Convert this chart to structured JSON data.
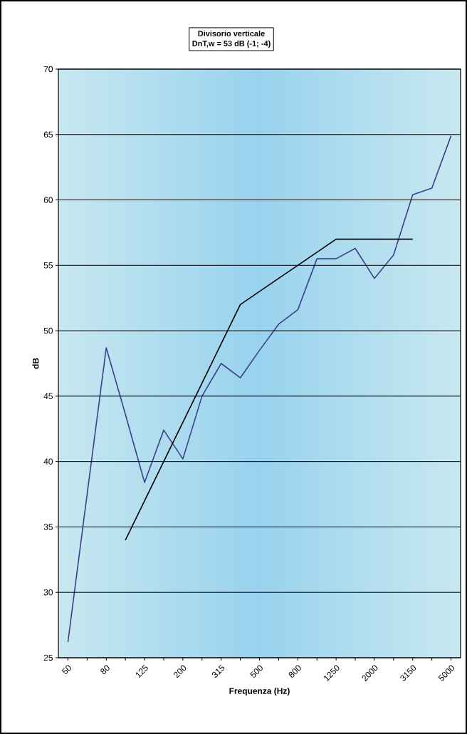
{
  "chart_data": {
    "type": "line",
    "title": "Divisorio verticale",
    "subtitle": "DnT,w = 53 dB (-1; -4)",
    "xlabel": "Frequenza (Hz)",
    "ylabel": "dB",
    "categories": [
      "50",
      null,
      "80",
      null,
      "125",
      null,
      "200",
      null,
      "315",
      null,
      "500",
      null,
      "800",
      null,
      "1250",
      null,
      "2000",
      null,
      "3150",
      null,
      "5000"
    ],
    "series": [
      {
        "color": "#3b3f8c",
        "values": [
          26.2,
          37.5,
          48.7,
          43.6,
          38.4,
          42.4,
          40.2,
          45.0,
          47.5,
          46.4,
          48.5,
          50.5,
          51.6,
          55.5,
          55.5,
          56.3,
          54.0,
          55.8,
          60.4,
          60.9,
          64.9
        ]
      },
      {
        "color": "#000000",
        "values": [
          null,
          null,
          null,
          34,
          37,
          40,
          43,
          46,
          49,
          52,
          53,
          54,
          55,
          56,
          57,
          57,
          57,
          57,
          57,
          null,
          null
        ]
      }
    ],
    "ylim": [
      25,
      70
    ],
    "yticks": [
      25,
      30,
      35,
      40,
      45,
      50,
      55,
      60,
      65,
      70
    ],
    "grid": "y",
    "marker": "none",
    "line_style": "solid"
  }
}
